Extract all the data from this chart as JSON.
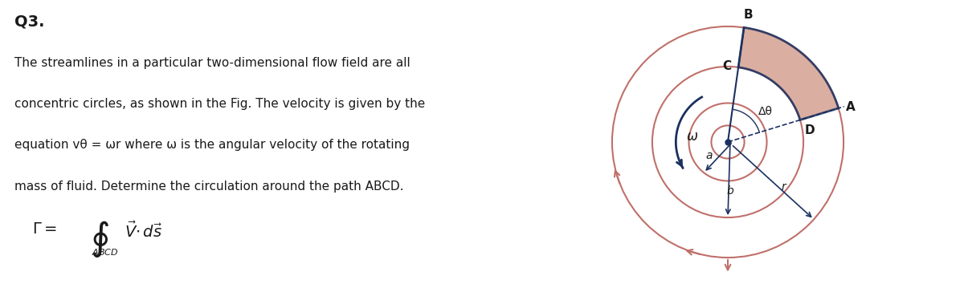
{
  "title": "Q3.",
  "body_text": [
    "The streamlines in a particular two-dimensional flow field are all",
    "concentric circles, as shown in the Fig. The velocity is given by the",
    "equation vθ = ωr where ω is the angular velocity of the rotating",
    "mass of fluid. Determine the circulation around the path ABCD."
  ],
  "bg_color": "#ffffff",
  "text_color": "#1a1a1a",
  "circle_color": "#c0706a",
  "line_color": "#1a3060",
  "shaded_color": "#d4a090",
  "label_B": "B",
  "label_C": "C",
  "label_A": "A",
  "label_D": "D",
  "label_omega": "ω",
  "label_Delta_theta": "Δθ",
  "label_a": "a",
  "label_b": "b",
  "label_r": "r"
}
